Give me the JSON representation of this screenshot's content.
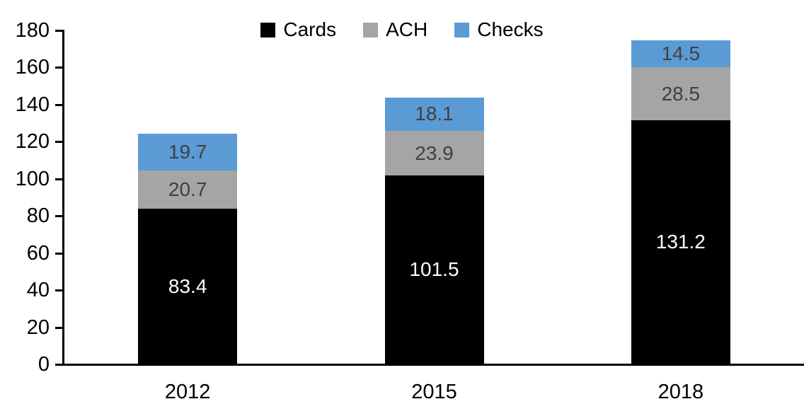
{
  "chart_data": {
    "type": "bar",
    "stacked": true,
    "title": "",
    "xlabel": "",
    "ylabel": "",
    "categories": [
      "2012",
      "2015",
      "2018"
    ],
    "series": [
      {
        "name": "Cards",
        "color": "#000000",
        "label_color": "#ffffff",
        "values": [
          83.4,
          101.5,
          131.2
        ]
      },
      {
        "name": "ACH",
        "color": "#a5a5a5",
        "label_color": "#404040",
        "values": [
          20.7,
          23.9,
          28.5
        ]
      },
      {
        "name": "Checks",
        "color": "#5b9bd5",
        "label_color": "#404040",
        "values": [
          19.7,
          18.1,
          14.5
        ]
      }
    ],
    "totals": [
      123.8,
      143.5,
      174.2
    ],
    "ylim": [
      0,
      180
    ],
    "ytick_step": 20,
    "yticks": [
      "0",
      "20",
      "40",
      "60",
      "80",
      "100",
      "120",
      "140",
      "160",
      "180"
    ],
    "legend_position": "top-center",
    "legend_entries": [
      "Cards",
      "ACH",
      "Checks"
    ],
    "grid": false,
    "axis_color": "#000000",
    "background_color": "#ffffff"
  }
}
